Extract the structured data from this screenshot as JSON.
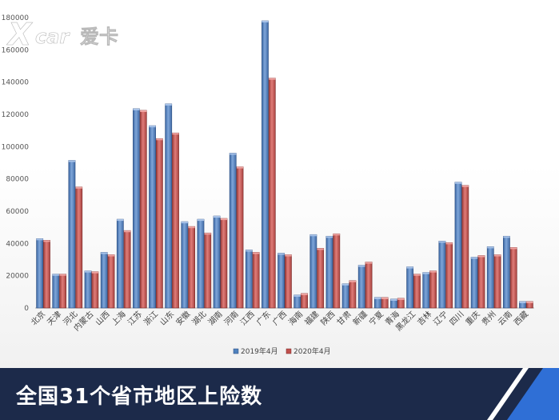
{
  "chart_data": {
    "type": "bar",
    "title": "",
    "xlabel": "",
    "ylabel": "",
    "ylim": [
      0,
      180000
    ],
    "yticks": [
      0,
      20000,
      40000,
      60000,
      80000,
      100000,
      120000,
      140000,
      160000,
      180000
    ],
    "grid": false,
    "legend_position": "bottom",
    "categories": [
      "北京",
      "天津",
      "河北",
      "内蒙古",
      "山西",
      "上海",
      "江苏",
      "浙江",
      "山东",
      "安徽",
      "湖北",
      "湖南",
      "河南",
      "江西",
      "广东",
      "广西",
      "海南",
      "福建",
      "陕西",
      "甘肃",
      "新疆",
      "宁夏",
      "青海",
      "黑龙江",
      "吉林",
      "辽宁",
      "四川",
      "重庆",
      "贵州",
      "云南",
      "西藏"
    ],
    "series": [
      {
        "name": "2019年4月",
        "color": "#4f81bd",
        "values": [
          43000,
          21000,
          91500,
          23000,
          34500,
          55000,
          123500,
          113000,
          126500,
          53500,
          55000,
          57000,
          96000,
          36000,
          178000,
          34000,
          8000,
          45500,
          44500,
          15000,
          26500,
          6500,
          5500,
          25500,
          22000,
          41500,
          78000,
          31500,
          38000,
          44500,
          4000
        ]
      },
      {
        "name": "2020年4月",
        "color": "#c0504d",
        "values": [
          42000,
          21000,
          75000,
          22500,
          33000,
          48000,
          122500,
          105000,
          108500,
          50500,
          46500,
          55500,
          87500,
          34500,
          142500,
          33000,
          9000,
          37000,
          46000,
          17000,
          28500,
          6500,
          6000,
          21000,
          23000,
          40500,
          76000,
          32500,
          33000,
          37500,
          4000
        ]
      }
    ]
  },
  "logo": {
    "brand": "XCAR",
    "tagline": "爱卡"
  },
  "banner": {
    "title": "全国31个省市地区上险数"
  }
}
